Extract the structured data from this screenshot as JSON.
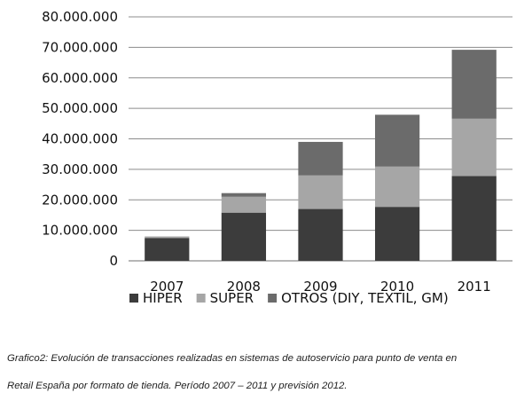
{
  "chart_data": {
    "type": "bar",
    "stacked": true,
    "categories": [
      "2007",
      "2008",
      "2009",
      "2010",
      "2011"
    ],
    "series": [
      {
        "name": "HIPER",
        "color": "#3c3c3c",
        "values": [
          7500000,
          15800000,
          17000000,
          17700000,
          27800000
        ]
      },
      {
        "name": "SUPER",
        "color": "#a6a6a6",
        "values": [
          500000,
          5200000,
          11000000,
          13200000,
          18800000
        ]
      },
      {
        "name": "OTROS (DIY, TEXTIL, GM)",
        "color": "#6b6b6b",
        "values": [
          0,
          1200000,
          11000000,
          17000000,
          22600000
        ]
      }
    ],
    "ylim": [
      0,
      80000000
    ],
    "yticks": [
      0,
      10000000,
      20000000,
      30000000,
      40000000,
      50000000,
      60000000,
      70000000,
      80000000
    ],
    "ytick_labels": [
      "0",
      "10.000.000",
      "20.000.000",
      "30.000.000",
      "40.000.000",
      "50.000.000",
      "60.000.000",
      "70.000.000",
      "80.000.000"
    ],
    "grid": true,
    "legend_position": "bottom",
    "title": "",
    "xlabel": "",
    "ylabel": ""
  },
  "caption": {
    "line1": "Grafico2: Evolución de transacciones realizadas en sistemas de autoservicio para punto de venta en",
    "line2": "Retail España por formato de tienda. Período 2007 – 2011 y previsión 2012."
  },
  "colors": {
    "grid": "#8c8c8c",
    "axis": "#8c8c8c"
  }
}
